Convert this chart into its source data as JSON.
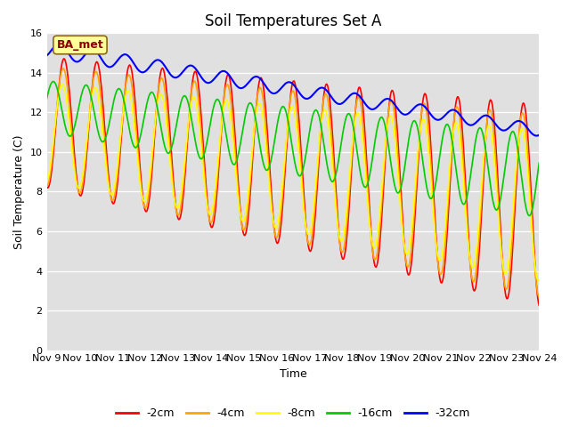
{
  "title": "Soil Temperatures Set A",
  "xlabel": "Time",
  "ylabel": "Soil Temperature (C)",
  "ylim": [
    0,
    16
  ],
  "days": 15,
  "annotation": "BA_met",
  "annotation_color": "#8B0000",
  "annotation_bg": "#FFFF99",
  "annotation_border": "#8B6914",
  "xtick_labels": [
    "Nov 9",
    "Nov 10",
    "Nov 11",
    "Nov 12",
    "Nov 13",
    "Nov 14",
    "Nov 15",
    "Nov 16",
    "Nov 17",
    "Nov 18",
    "Nov 19",
    "Nov 20",
    "Nov 21",
    "Nov 22",
    "Nov 23",
    "Nov 24"
  ],
  "ytick_labels": [
    "0",
    "2",
    "4",
    "6",
    "8",
    "10",
    "12",
    "14",
    "16"
  ],
  "ytick_values": [
    0,
    2,
    4,
    6,
    8,
    10,
    12,
    14,
    16
  ],
  "legend_labels": [
    "-2cm",
    "-4cm",
    "-8cm",
    "-16cm",
    "-32cm"
  ],
  "legend_colors": [
    "#FF0000",
    "#FFA500",
    "#FFFF00",
    "#00CC00",
    "#0000FF"
  ],
  "background_color": "#E0E0E0",
  "figure_color": "#FFFFFF",
  "title_fontsize": 12,
  "axis_label_fontsize": 9,
  "tick_fontsize": 8,
  "legend_fontsize": 9,
  "num_points": 720
}
